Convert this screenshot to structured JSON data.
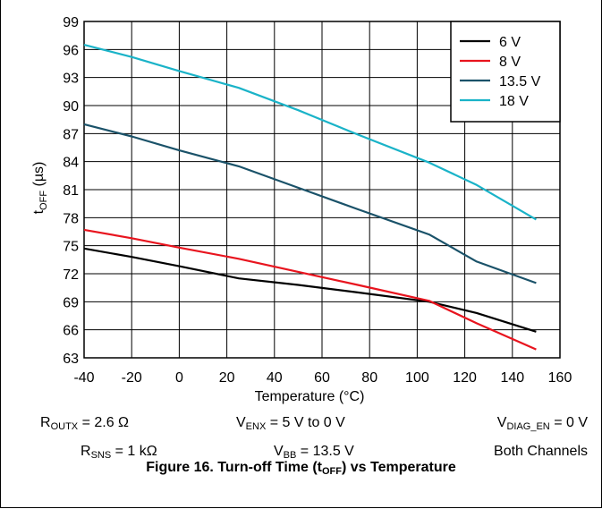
{
  "chart_data": {
    "type": "line",
    "title": "",
    "xlabel": "Temperature (°C)",
    "ylabel": {
      "main": "t",
      "sub": "OFF",
      "rest": " (µs)"
    },
    "xlim": [
      -40,
      160
    ],
    "ylim": [
      63,
      99
    ],
    "xticks": [
      "-40",
      "-20",
      "0",
      "20",
      "40",
      "60",
      "80",
      "100",
      "120",
      "140",
      "160"
    ],
    "yticks": [
      "63",
      "66",
      "69",
      "72",
      "75",
      "78",
      "81",
      "84",
      "87",
      "90",
      "93",
      "96",
      "99"
    ],
    "grid": true,
    "legend_position": "top-right",
    "series": [
      {
        "name": "6 V",
        "color": "#000000",
        "x": [
          -40,
          -20,
          0,
          25,
          50,
          75,
          105,
          125,
          150
        ],
        "y": [
          74.7,
          73.8,
          72.8,
          71.5,
          70.8,
          70.0,
          69.0,
          67.8,
          65.8
        ]
      },
      {
        "name": "8 V",
        "color": "#e8141e",
        "x": [
          -40,
          -20,
          0,
          25,
          50,
          75,
          105,
          125,
          150
        ],
        "y": [
          76.7,
          75.8,
          74.8,
          73.6,
          72.2,
          70.8,
          69.1,
          66.7,
          63.9
        ]
      },
      {
        "name": "13.5 V",
        "color": "#1a5269",
        "x": [
          -40,
          -20,
          0,
          25,
          50,
          75,
          105,
          125,
          150
        ],
        "y": [
          88.0,
          86.7,
          85.2,
          83.5,
          81.2,
          78.9,
          76.2,
          73.3,
          71.0
        ]
      },
      {
        "name": "18 V",
        "color": "#1ab3c8",
        "x": [
          -40,
          -20,
          0,
          25,
          50,
          75,
          105,
          125,
          150
        ],
        "y": [
          96.5,
          95.2,
          93.7,
          91.9,
          89.5,
          86.9,
          83.9,
          81.5,
          77.8
        ]
      }
    ]
  },
  "conditions": {
    "row1": {
      "routx": {
        "main": "R",
        "sub": "OUTX",
        "rest": " = 2.6 Ω"
      },
      "venx": {
        "main": "V",
        "sub": "ENX",
        "rest": " = 5 V to 0 V"
      },
      "vdiag": {
        "main": "V",
        "sub": "DIAG_EN",
        "rest": " = 0 V"
      }
    },
    "row2": {
      "rsns": {
        "main": "R",
        "sub": "SNS",
        "rest": " = 1 kΩ"
      },
      "vbb": {
        "main": "V",
        "sub": "BB",
        "rest": " = 13.5 V"
      },
      "channels": "Both Channels"
    }
  },
  "caption": {
    "before": "Figure 16. Turn-off Time (t",
    "sub": "OFF",
    "after": ") vs Temperature"
  }
}
